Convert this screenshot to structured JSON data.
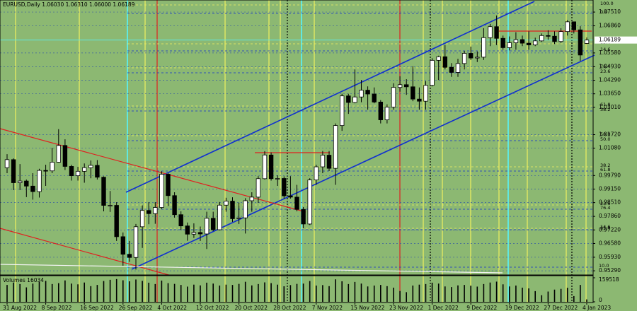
{
  "chart_data": {
    "type": "candlestick",
    "title": "EURUSD,Daily  1.06030 1.06310 1.06000 1.06189",
    "categories": [
      "31 Aug 2022",
      null,
      null,
      null,
      null,
      null,
      "8 Sep 2022",
      null,
      null,
      null,
      null,
      null,
      "16 Sep 2022",
      null,
      null,
      null,
      null,
      null,
      "26 Sep 2022",
      null,
      null,
      null,
      null,
      null,
      "4 Oct 2022",
      null,
      null,
      null,
      null,
      null,
      "12 Oct 2022",
      null,
      null,
      null,
      null,
      null,
      "20 Oct 2022",
      null,
      null,
      null,
      null,
      null,
      "28 Oct 2022",
      null,
      null,
      null,
      null,
      null,
      "7 Nov 2022",
      null,
      null,
      null,
      null,
      null,
      "15 Nov 2022",
      null,
      null,
      null,
      null,
      null,
      "23 Nov 2022",
      null,
      null,
      null,
      null,
      null,
      "1 Dec 2022",
      null,
      null,
      null,
      null,
      null,
      "9 Dec 2022",
      null,
      null,
      null,
      null,
      null,
      "19 Dec 2022",
      null,
      null,
      null,
      null,
      null,
      "27 Dec 2022",
      null,
      null,
      null,
      null,
      null,
      "4 Jan 2023"
    ],
    "open": [
      1.0016,
      1.0054,
      0.9945,
      0.9953,
      0.9929,
      0.9903,
      1.0003,
      1.0001,
      1.0042,
      1.0121,
      1.0022,
      0.9978,
      0.9999,
      1.0016,
      1.0027,
      0.9971,
      0.9838,
      0.9838,
      0.969,
      0.9607,
      0.9592,
      0.9737,
      0.9814,
      0.9799,
      0.9828,
      0.9985,
      0.9884,
      0.9794,
      0.9741,
      0.9702,
      0.971,
      0.9703,
      0.9777,
      0.9723,
      0.9839,
      0.9858,
      0.9775,
      0.9779,
      0.986,
      0.9877,
      0.9964,
      1.0076,
      0.9964,
      0.9965,
      0.9883,
      0.9877,
      0.9819,
      0.975,
      0.9958,
      1.002,
      1.0075,
      1.0013,
      1.0215,
      1.0355,
      1.0324,
      1.035,
      1.0382,
      1.0364,
      1.0326,
      1.0242,
      1.0302,
      1.0395,
      1.0408,
      1.0398,
      1.034,
      1.033,
      1.0405,
      1.0523,
      1.054,
      1.049,
      1.0466,
      1.0508,
      1.0556,
      1.0534,
      1.0538,
      1.063,
      1.0682,
      1.0627,
      1.0583,
      1.0606,
      1.0621,
      1.0604,
      1.0596,
      1.0615,
      1.064,
      1.0637,
      1.0612,
      1.0659,
      1.0705,
      1.0667,
      1.0603
    ],
    "high": [
      1.008,
      1.006,
      1.0033,
      0.996,
      0.999,
      1.0011,
      1.003,
      1.011,
      1.0198,
      1.015,
      1.003,
      1.002,
      1.0036,
      1.005,
      1.0052,
      0.9975,
      0.9906,
      0.9853,
      0.971,
      0.967,
      0.975,
      0.9838,
      0.9853,
      0.9853,
      0.9999,
      0.999,
      0.99,
      0.981,
      0.9757,
      0.9753,
      0.9738,
      0.9808,
      0.9808,
      0.9854,
      0.9874,
      0.9876,
      0.9851,
      0.9872,
      0.99,
      0.9976,
      1.0094,
      1.0088,
      0.998,
      0.9975,
      0.9976,
      0.9935,
      0.983,
      0.9966,
      1.003,
      1.0095,
      1.0095,
      1.0225,
      1.0365,
      1.0365,
      1.048,
      1.043,
      1.04,
      1.0395,
      1.0335,
      1.0315,
      1.0415,
      1.0448,
      1.0434,
      1.0495,
      1.0395,
      1.0425,
      1.0533,
      1.0545,
      1.0595,
      1.051,
      1.053,
      1.0568,
      1.0588,
      1.0565,
      1.0675,
      1.0695,
      1.0735,
      1.064,
      1.0636,
      1.0656,
      1.064,
      1.066,
      1.063,
      1.065,
      1.0665,
      1.066,
      1.0675,
      1.0713,
      1.0705,
      1.0684,
      1.0631
    ],
    "low": [
      0.999,
      0.991,
      0.991,
      0.9877,
      0.9865,
      0.9875,
      0.993,
      0.999,
      1.004,
      1.0005,
      0.9955,
      0.9955,
      0.9945,
      0.9966,
      0.996,
      0.981,
      0.9807,
      0.967,
      0.9553,
      0.9571,
      0.9535,
      0.9637,
      0.9749,
      0.9751,
      0.9821,
      0.9835,
      0.978,
      0.9722,
      0.9671,
      0.9684,
      0.967,
      0.9632,
      0.9716,
      0.972,
      0.9808,
      0.976,
      0.975,
      0.9705,
      0.9808,
      0.985,
      0.996,
      0.9955,
      0.993,
      0.987,
      0.987,
      0.981,
      0.973,
      0.9745,
      0.9935,
      0.999,
      1.0,
      0.9935,
      1.019,
      1.027,
      1.032,
      1.0325,
      1.029,
      1.032,
      1.0225,
      1.0225,
      1.029,
      1.0375,
      1.036,
      1.033,
      1.029,
      1.029,
      1.04,
      1.043,
      1.048,
      1.0445,
      1.0445,
      1.048,
      1.0525,
      1.0515,
      1.0525,
      1.059,
      1.0595,
      1.0573,
      1.057,
      1.0573,
      1.059,
      1.0573,
      1.059,
      1.061,
      1.062,
      1.06,
      1.0605,
      1.064,
      1.065,
      1.052,
      1.06
    ],
    "close": [
      1.0054,
      0.9945,
      0.9953,
      0.9929,
      0.9903,
      1.0003,
      1.0001,
      1.0042,
      1.0121,
      1.0022,
      0.9978,
      0.9999,
      1.0016,
      1.0027,
      0.9971,
      0.9838,
      0.9838,
      0.969,
      0.9607,
      0.9592,
      0.9737,
      0.9814,
      0.9799,
      0.9828,
      0.9985,
      0.9884,
      0.9794,
      0.9741,
      0.9702,
      0.971,
      0.9703,
      0.9777,
      0.9723,
      0.9839,
      0.9858,
      0.9775,
      0.9779,
      0.986,
      0.9877,
      0.9964,
      1.0076,
      0.9964,
      0.9965,
      0.9883,
      0.9877,
      0.9819,
      0.975,
      0.9958,
      1.002,
      1.0075,
      1.0013,
      1.0215,
      1.0355,
      1.0324,
      1.035,
      1.0382,
      1.0364,
      1.0326,
      1.0242,
      1.0302,
      1.0395,
      1.0408,
      1.0398,
      1.034,
      1.033,
      1.0405,
      1.0523,
      1.054,
      1.049,
      1.0466,
      1.0508,
      1.0556,
      1.0534,
      1.0538,
      1.063,
      1.0682,
      1.0627,
      1.0583,
      1.0606,
      1.0621,
      1.0604,
      1.0596,
      1.0615,
      1.064,
      1.0637,
      1.0612,
      1.0659,
      1.0705,
      1.0667,
      1.0548,
      1.06189
    ],
    "ylim": [
      0.9506,
      1.0808
    ],
    "yticks": [
      {
        "value": 1.0751,
        "label": "1.07510"
      },
      {
        "value": 1.0686,
        "label": "1.06860"
      },
      {
        "value": 1.0558,
        "label": "1.05580"
      },
      {
        "value": 1.0493,
        "label": "1.04930"
      },
      {
        "value": 1.0429,
        "label": "1.04290"
      },
      {
        "value": 1.0365,
        "label": "1.03650"
      },
      {
        "value": 1.0301,
        "label": "1.03010"
      },
      {
        "value": 1.0172,
        "label": "1.01720"
      },
      {
        "value": 1.0108,
        "label": "1.01080"
      },
      {
        "value": 0.9979,
        "label": "0.99790"
      },
      {
        "value": 0.9915,
        "label": "0.99150"
      },
      {
        "value": 0.9851,
        "label": "0.98510"
      },
      {
        "value": 0.9786,
        "label": "0.97860"
      },
      {
        "value": 0.9722,
        "label": "0.97220"
      },
      {
        "value": 0.9658,
        "label": "0.96580"
      },
      {
        "value": 0.9593,
        "label": "0.95930"
      },
      {
        "value": 0.9529,
        "label": "0.95290"
      }
    ],
    "last_price": 1.06189,
    "fib_labels": [
      "100.0",
      "0.0",
      "85.4",
      "14.6",
      "76.4",
      "23.6",
      "61.8",
      "38.2",
      "50.0",
      "50.0",
      "38.2",
      "61.8",
      "23.6",
      "76.4",
      "14.6",
      "85.4",
      "10.0"
    ],
    "volume_label": "Volumes 16034",
    "volumes": [
      112000,
      128000,
      118000,
      96000,
      121000,
      132000,
      139000,
      118000,
      124000,
      142000,
      121000,
      116000,
      128000,
      104000,
      112000,
      138000,
      146000,
      151000,
      143000,
      136000,
      148000,
      139000,
      127000,
      118000,
      141000,
      124000,
      119000,
      112000,
      101000,
      114000,
      109000,
      127000,
      121000,
      108000,
      114000,
      112000,
      119000,
      133000,
      109000,
      118000,
      129000,
      124000,
      114000,
      103000,
      111000,
      119000,
      121000,
      138000,
      108000,
      111000,
      104000,
      149000,
      136000,
      118000,
      132000,
      121000,
      102000,
      108000,
      112000,
      104000,
      94000,
      72000,
      64000,
      108000,
      114000,
      118000,
      127000,
      121000,
      102000,
      98000,
      109000,
      112000,
      107000,
      101000,
      118000,
      128000,
      134000,
      116000,
      102000,
      108000,
      94000,
      89000,
      71000,
      44000,
      68000,
      81000,
      86000,
      93000,
      38000,
      112000,
      16034
    ],
    "volume_ylim": [
      0,
      159518
    ],
    "volume_yticks": [
      159518,
      0
    ]
  }
}
